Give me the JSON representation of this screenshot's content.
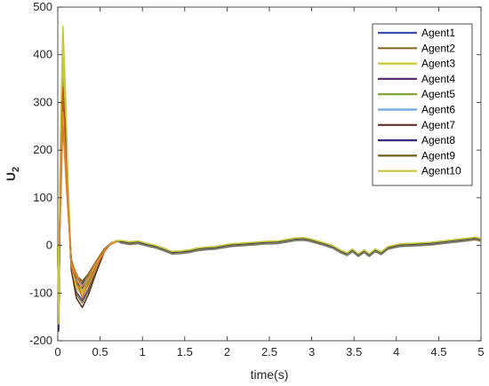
{
  "chart_data": {
    "type": "line",
    "title": "",
    "xlabel": "time(s)",
    "ylabel_main": "U",
    "ylabel_sub": "2",
    "xlim": [
      0,
      5
    ],
    "ylim": [
      -200,
      500
    ],
    "xticks": [
      0,
      0.5,
      1,
      1.5,
      2,
      2.5,
      3,
      3.5,
      4,
      4.5,
      5
    ],
    "xtick_labels": [
      "0",
      "0.5",
      "1",
      "1.5",
      "2",
      "2.5",
      "3",
      "3.5",
      "4",
      "4.5",
      "5"
    ],
    "yticks": [
      -200,
      -100,
      0,
      100,
      200,
      300,
      400,
      500
    ],
    "ytick_labels": [
      "-200",
      "-100",
      "0",
      "100",
      "200",
      "300",
      "400",
      "500"
    ],
    "grid": false,
    "legend_position": "top-right",
    "tail": [
      [
        0.75,
        8
      ],
      [
        0.85,
        5
      ],
      [
        0.95,
        7
      ],
      [
        1.05,
        2
      ],
      [
        1.15,
        -2
      ],
      [
        1.25,
        -8
      ],
      [
        1.35,
        -15
      ],
      [
        1.45,
        -14
      ],
      [
        1.55,
        -12
      ],
      [
        1.65,
        -8
      ],
      [
        1.75,
        -6
      ],
      [
        1.85,
        -5
      ],
      [
        1.95,
        -2
      ],
      [
        2.05,
        1
      ],
      [
        2.15,
        2
      ],
      [
        2.3,
        4
      ],
      [
        2.45,
        6
      ],
      [
        2.6,
        7
      ],
      [
        2.7,
        10
      ],
      [
        2.8,
        13
      ],
      [
        2.9,
        14
      ],
      [
        2.97,
        12
      ],
      [
        3.05,
        8
      ],
      [
        3.15,
        3
      ],
      [
        3.25,
        -3
      ],
      [
        3.35,
        -13
      ],
      [
        3.42,
        -18
      ],
      [
        3.48,
        -10
      ],
      [
        3.55,
        -20
      ],
      [
        3.62,
        -12
      ],
      [
        3.68,
        -20
      ],
      [
        3.75,
        -10
      ],
      [
        3.82,
        -16
      ],
      [
        3.9,
        -5
      ],
      [
        3.97,
        -2
      ],
      [
        4.05,
        1
      ],
      [
        4.2,
        2
      ],
      [
        4.4,
        4
      ],
      [
        4.6,
        8
      ],
      [
        4.75,
        11
      ],
      [
        4.85,
        13
      ],
      [
        4.93,
        15
      ],
      [
        5.0,
        12
      ]
    ],
    "series": [
      {
        "name": "Agent1",
        "color": "#3b4fb0",
        "peak": 385,
        "dip": -115,
        "start": -175
      },
      {
        "name": "Agent2",
        "color": "#8a6a2a",
        "peak": 345,
        "dip": -120,
        "start": -150
      },
      {
        "name": "Agent3",
        "color": "#c9c534",
        "peak": 395,
        "dip": -100,
        "start": -130
      },
      {
        "name": "Agent4",
        "color": "#5b2e73",
        "peak": 300,
        "dip": -90,
        "start": -165
      },
      {
        "name": "Agent5",
        "color": "#78a531",
        "peak": 300,
        "dip": -95,
        "start": -140
      },
      {
        "name": "Agent6",
        "color": "#6fa8dd",
        "peak": 265,
        "dip": -85,
        "start": -120
      },
      {
        "name": "Agent7",
        "color": "#5e3324",
        "peak": 330,
        "dip": -130,
        "start": -170
      },
      {
        "name": "Agent8",
        "color": "#32307c",
        "peak": 290,
        "dip": -80,
        "start": -180
      },
      {
        "name": "Agent9",
        "color": "#6b6014",
        "peak": 270,
        "dip": -75,
        "start": -155
      },
      {
        "name": "Agent10",
        "color": "#c6c63a",
        "peak": 460,
        "dip": -105,
        "start": -165
      }
    ],
    "highlight_colors": [
      "#e25b1f",
      "#f0a030",
      "#d87a2a"
    ]
  }
}
